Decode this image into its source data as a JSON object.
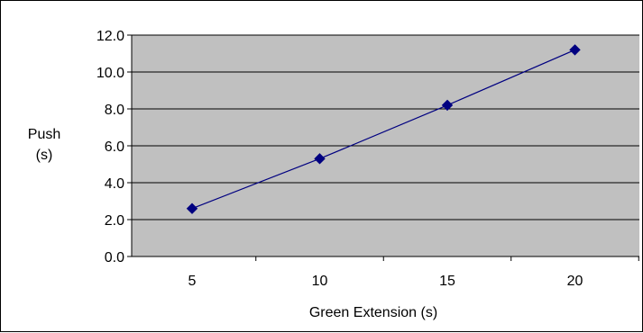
{
  "chart_data": {
    "type": "line",
    "title": "",
    "xlabel": "Green Extension (s)",
    "ylabel": [
      "Push",
      "(s)"
    ],
    "x": [
      5,
      10,
      15,
      20
    ],
    "y_ticks": [
      "0.0",
      "2.0",
      "4.0",
      "6.0",
      "8.0",
      "10.0",
      "12.0"
    ],
    "ylim": [
      0,
      12
    ],
    "series": [
      {
        "values": [
          2.6,
          5.3,
          8.2,
          11.2
        ],
        "color": "#000080"
      }
    ],
    "plot_background": "#c0c0c0",
    "grid": "horizontal",
    "legend": "none",
    "marker": "diamond"
  }
}
